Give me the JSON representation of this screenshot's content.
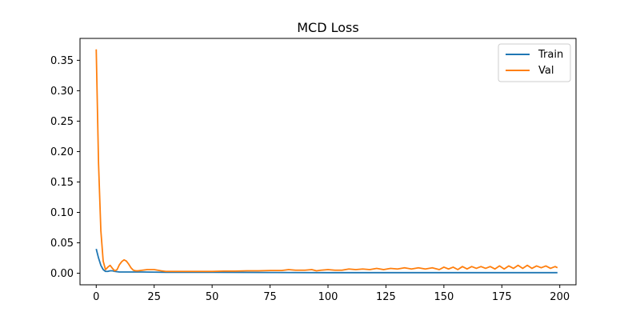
{
  "chart_data": {
    "type": "line",
    "title": "MCD Loss",
    "xlabel": "",
    "ylabel": "",
    "xlim": [
      -7,
      207
    ],
    "ylim": [
      -0.019,
      0.386
    ],
    "x_ticks": [
      0,
      25,
      50,
      75,
      100,
      125,
      150,
      175,
      200
    ],
    "x_tick_labels": [
      "0",
      "25",
      "50",
      "75",
      "100",
      "125",
      "150",
      "175",
      "200"
    ],
    "y_ticks": [
      0.0,
      0.05,
      0.1,
      0.15,
      0.2,
      0.25,
      0.3,
      0.35
    ],
    "y_tick_labels": [
      "0.00",
      "0.05",
      "0.10",
      "0.15",
      "0.20",
      "0.25",
      "0.30",
      "0.35"
    ],
    "grid": false,
    "legend": {
      "position": "upper right",
      "entries": [
        "Train",
        "Val"
      ]
    },
    "series": [
      {
        "name": "Train",
        "color": "#1f77b4",
        "x": [
          0,
          1,
          2,
          3,
          4,
          5,
          6,
          7,
          8,
          9,
          10,
          12,
          15,
          20,
          30,
          50,
          100,
          150,
          199
        ],
        "y": [
          0.04,
          0.025,
          0.013,
          0.006,
          0.003,
          0.003,
          0.004,
          0.004,
          0.003,
          0.0025,
          0.002,
          0.002,
          0.002,
          0.002,
          0.0015,
          0.0015,
          0.001,
          0.001,
          0.001
        ]
      },
      {
        "name": "Val",
        "color": "#ff7f0e",
        "x": [
          0,
          1,
          2,
          3,
          4,
          5,
          6,
          7,
          8,
          9,
          10,
          11,
          12,
          13,
          14,
          15,
          16,
          17,
          18,
          20,
          22,
          25,
          28,
          30,
          35,
          40,
          45,
          50,
          55,
          60,
          65,
          70,
          75,
          80,
          83,
          86,
          90,
          93,
          95,
          97,
          100,
          103,
          106,
          109,
          112,
          115,
          118,
          121,
          124,
          127,
          130,
          133,
          136,
          139,
          142,
          145,
          148,
          150,
          152,
          154,
          156,
          158,
          160,
          162,
          164,
          166,
          168,
          170,
          172,
          174,
          176,
          178,
          180,
          182,
          184,
          186,
          188,
          190,
          192,
          194,
          196,
          198,
          199
        ],
        "y": [
          0.368,
          0.18,
          0.07,
          0.02,
          0.006,
          0.01,
          0.013,
          0.008,
          0.004,
          0.006,
          0.014,
          0.019,
          0.022,
          0.02,
          0.015,
          0.009,
          0.005,
          0.004,
          0.004,
          0.005,
          0.006,
          0.006,
          0.004,
          0.003,
          0.003,
          0.003,
          0.003,
          0.003,
          0.0035,
          0.0035,
          0.004,
          0.004,
          0.0045,
          0.0045,
          0.006,
          0.005,
          0.005,
          0.006,
          0.004,
          0.005,
          0.006,
          0.005,
          0.005,
          0.007,
          0.006,
          0.007,
          0.006,
          0.008,
          0.006,
          0.008,
          0.007,
          0.009,
          0.007,
          0.009,
          0.007,
          0.009,
          0.006,
          0.01,
          0.007,
          0.01,
          0.006,
          0.011,
          0.007,
          0.011,
          0.008,
          0.011,
          0.008,
          0.011,
          0.007,
          0.012,
          0.007,
          0.012,
          0.008,
          0.013,
          0.008,
          0.013,
          0.008,
          0.012,
          0.009,
          0.012,
          0.008,
          0.011,
          0.009
        ]
      }
    ]
  }
}
